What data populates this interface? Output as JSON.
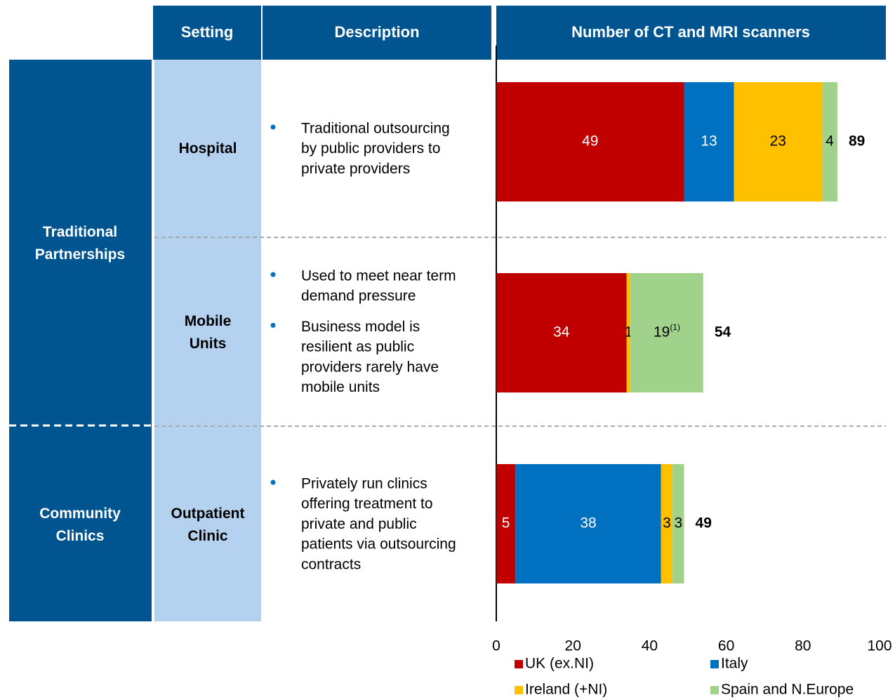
{
  "table": {
    "headers": [
      "Setting",
      "Description"
    ],
    "groups": [
      "Traditional Partnerships",
      "Community Clinics"
    ],
    "descriptions": [
      [
        [
          "Traditional outsourcing",
          "by public providers to",
          "private providers"
        ]
      ],
      [
        [
          "Used to meet near term",
          "demand pressure"
        ],
        [
          "Business model is",
          "resilient as public",
          "providers rarely have",
          "mobile units"
        ]
      ],
      [
        [
          "Privately run clinics",
          "offering treatment to",
          "private and public",
          "patients via outsourcing",
          "contracts"
        ]
      ]
    ]
  },
  "chart_data": {
    "type": "bar",
    "orientation": "horizontal",
    "stacked": true,
    "title": "Number of CT and MRI scanners",
    "categories": [
      "Hospital",
      "Mobile Units",
      "Outpatient Clinic"
    ],
    "series": [
      {
        "name": "UK (ex.NI)",
        "color": "#c00000",
        "label_color": "#ffffff",
        "values": [
          49,
          34,
          5
        ]
      },
      {
        "name": "Italy",
        "color": "#0070c0",
        "label_color": "#ffffff",
        "values": [
          13,
          0,
          38
        ]
      },
      {
        "name": "Ireland (+NI)",
        "color": "#ffc000",
        "label_color": "#000000",
        "values": [
          23,
          1,
          3
        ]
      },
      {
        "name": "Spain and N.Europe",
        "color": "#a0d28c",
        "label_color": "#000000",
        "values": [
          4,
          19,
          3
        ],
        "value_labels": [
          "4",
          "19(1)",
          "3"
        ]
      }
    ],
    "totals": [
      89,
      54,
      49
    ],
    "xlim": [
      0,
      100
    ],
    "xticks": [
      0,
      20,
      40,
      60,
      80,
      100
    ],
    "legend": "bottom"
  }
}
